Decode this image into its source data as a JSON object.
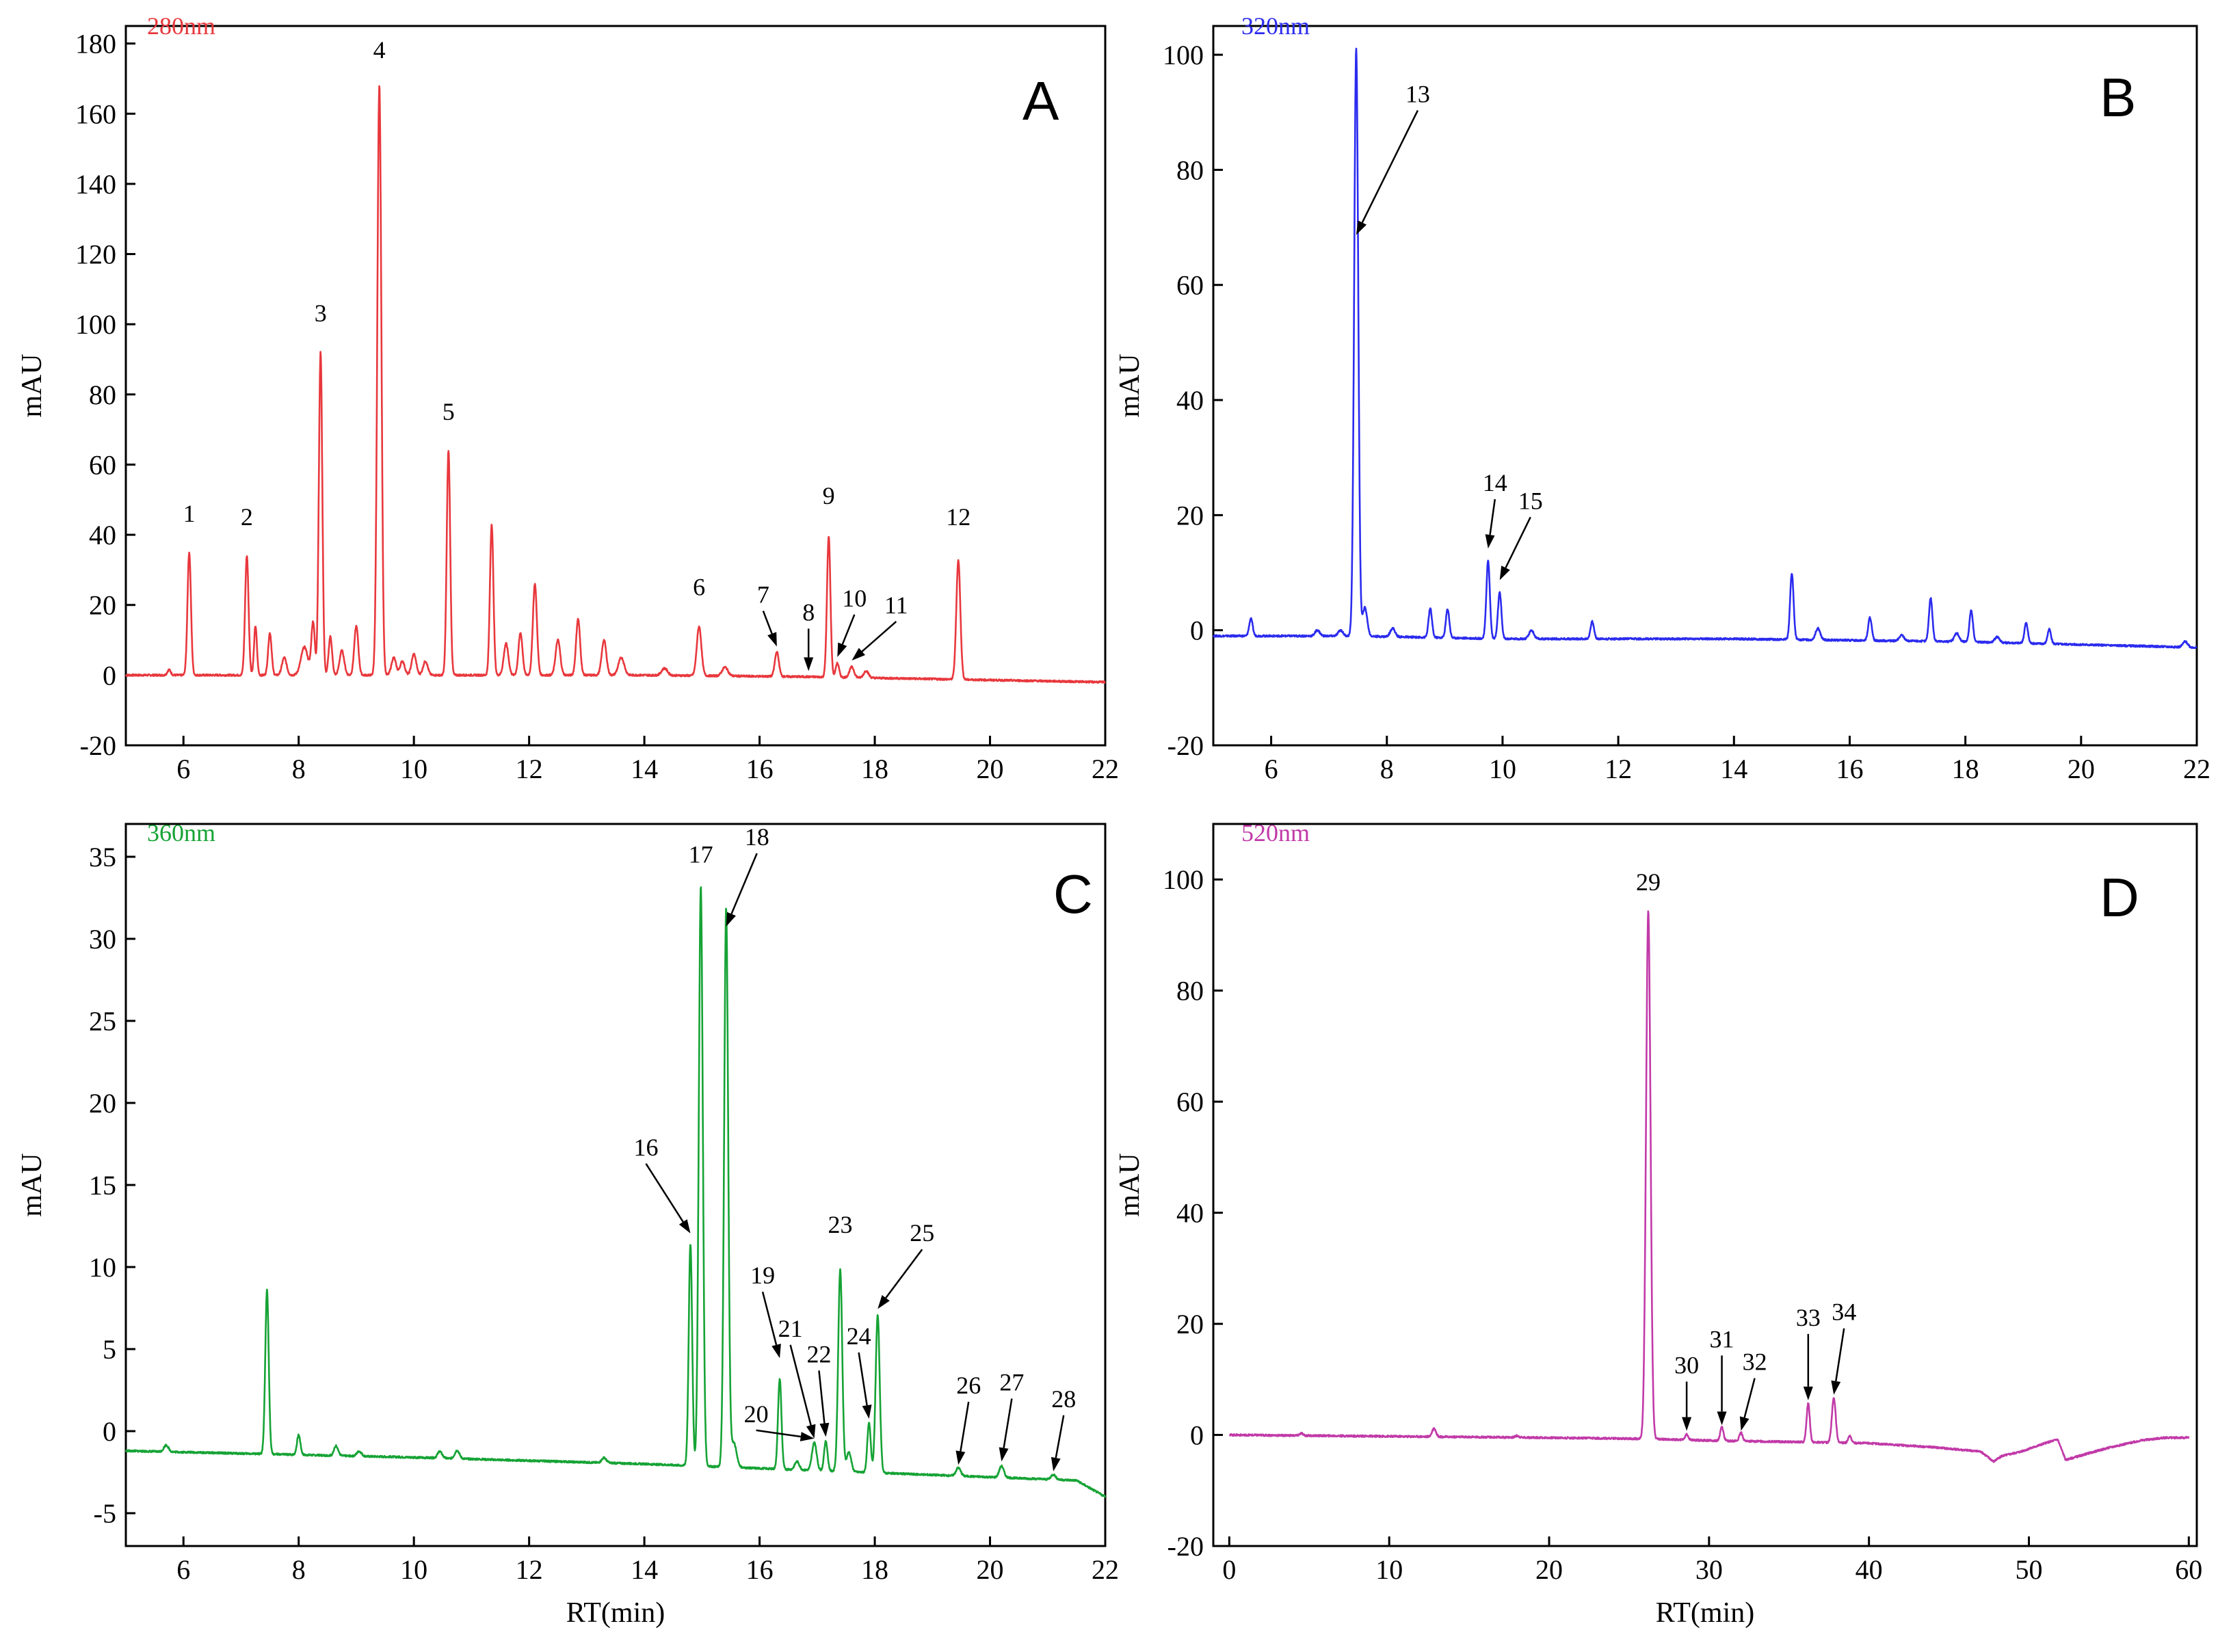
{
  "chart_data": [
    {
      "type": "line",
      "panel": "A",
      "wavelength_label": "280nm",
      "color": "#e8383d",
      "xlabel": "",
      "ylabel": "mAU",
      "xlim": [
        5,
        22
      ],
      "ylim": [
        -20,
        185
      ],
      "xticks": [
        6,
        8,
        10,
        12,
        14,
        16,
        18,
        20,
        22
      ],
      "yticks": [
        -20,
        0,
        20,
        40,
        60,
        80,
        100,
        120,
        140,
        160,
        180
      ],
      "baseline": [
        [
          5,
          0
        ],
        [
          10,
          0
        ],
        [
          14,
          0
        ],
        [
          17,
          -0.5
        ],
        [
          22,
          -2
        ]
      ],
      "peaks": [
        [
          5.75,
          1.5,
          0.03
        ],
        [
          6.1,
          35,
          0.03
        ],
        [
          7.1,
          34,
          0.03
        ],
        [
          7.25,
          14,
          0.025
        ],
        [
          7.5,
          12,
          0.03
        ],
        [
          7.75,
          5,
          0.04
        ],
        [
          8.1,
          8,
          0.06
        ],
        [
          8.25,
          15,
          0.03
        ],
        [
          8.38,
          92,
          0.03
        ],
        [
          8.55,
          11,
          0.03
        ],
        [
          8.75,
          7,
          0.04
        ],
        [
          9.0,
          14,
          0.035
        ],
        [
          9.4,
          168,
          0.035
        ],
        [
          9.65,
          5,
          0.04
        ],
        [
          9.8,
          4,
          0.04
        ],
        [
          10.0,
          6,
          0.04
        ],
        [
          10.2,
          4,
          0.04
        ],
        [
          10.6,
          64,
          0.03
        ],
        [
          11.35,
          43,
          0.03
        ],
        [
          11.6,
          9,
          0.04
        ],
        [
          11.85,
          12,
          0.035
        ],
        [
          12.1,
          26,
          0.035
        ],
        [
          12.5,
          10,
          0.04
        ],
        [
          12.85,
          16,
          0.035
        ],
        [
          13.3,
          10,
          0.04
        ],
        [
          13.6,
          5,
          0.05
        ],
        [
          14.35,
          2,
          0.05
        ],
        [
          14.95,
          14,
          0.04
        ],
        [
          15.4,
          2.5,
          0.05
        ],
        [
          16.3,
          7,
          0.035
        ],
        [
          17.2,
          40,
          0.03
        ],
        [
          17.35,
          4,
          0.03
        ],
        [
          17.6,
          3,
          0.04
        ],
        [
          17.85,
          2,
          0.04
        ],
        [
          19.45,
          34,
          0.035
        ]
      ],
      "peak_labels": [
        {
          "label": "1",
          "rt": 6.1,
          "value": 35
        },
        {
          "label": "2",
          "rt": 7.1,
          "value": 34
        },
        {
          "label": "3",
          "rt": 8.38,
          "value": 92
        },
        {
          "label": "4",
          "rt": 9.4,
          "value": 168
        },
        {
          "label": "5",
          "rt": 10.6,
          "value": 64
        },
        {
          "label": "6",
          "rt": 14.95,
          "value": 14
        },
        {
          "label": "7",
          "rt": 16.3,
          "value": 7,
          "arrow": true
        },
        {
          "label": "8",
          "rt": 16.85,
          "value": 0,
          "arrow": true
        },
        {
          "label": "9",
          "rt": 17.2,
          "value": 40
        },
        {
          "label": "10",
          "rt": 17.35,
          "value": 4,
          "arrow": true
        },
        {
          "label": "11",
          "rt": 17.6,
          "value": 3,
          "arrow": true
        },
        {
          "label": "12",
          "rt": 19.45,
          "value": 34
        }
      ]
    },
    {
      "type": "line",
      "panel": "B",
      "wavelength_label": "320nm",
      "color": "#2b2bef",
      "xlabel": "",
      "ylabel": "mAU",
      "xlim": [
        5,
        22
      ],
      "ylim": [
        -20,
        105
      ],
      "xticks": [
        6,
        8,
        10,
        12,
        14,
        16,
        18,
        20,
        22
      ],
      "yticks": [
        -20,
        0,
        20,
        40,
        60,
        80,
        100
      ],
      "baseline": [
        [
          5,
          -1
        ],
        [
          7.4,
          -1
        ],
        [
          10,
          -1.5
        ],
        [
          14,
          -1.5
        ],
        [
          18,
          -2
        ],
        [
          22,
          -3
        ]
      ],
      "peaks": [
        [
          5.65,
          3,
          0.03
        ],
        [
          6.8,
          1,
          0.04
        ],
        [
          7.2,
          1,
          0.04
        ],
        [
          7.47,
          102,
          0.035
        ],
        [
          7.62,
          5,
          0.04
        ],
        [
          8.1,
          1.5,
          0.04
        ],
        [
          8.75,
          5,
          0.03
        ],
        [
          9.05,
          5,
          0.03
        ],
        [
          9.75,
          13.5,
          0.03
        ],
        [
          9.95,
          8,
          0.03
        ],
        [
          10.5,
          1.5,
          0.04
        ],
        [
          11.55,
          3,
          0.03
        ],
        [
          15.0,
          11.5,
          0.03
        ],
        [
          15.45,
          2,
          0.04
        ],
        [
          16.35,
          4,
          0.03
        ],
        [
          16.9,
          1,
          0.04
        ],
        [
          17.4,
          7.5,
          0.03
        ],
        [
          17.85,
          1.5,
          0.04
        ],
        [
          18.1,
          5.5,
          0.03
        ],
        [
          18.55,
          1,
          0.04
        ],
        [
          19.05,
          3.5,
          0.03
        ],
        [
          19.45,
          2.5,
          0.03
        ],
        [
          21.8,
          1,
          0.04
        ]
      ],
      "peak_labels": [
        {
          "label": "13",
          "rt": 7.47,
          "value": 68,
          "arrow": true
        },
        {
          "label": "14",
          "rt": 9.75,
          "value": 13.5,
          "arrow": true
        },
        {
          "label": "15",
          "rt": 9.95,
          "value": 8,
          "arrow": true
        }
      ]
    },
    {
      "type": "line",
      "panel": "C",
      "wavelength_label": "360nm",
      "color": "#16a335",
      "xlabel": "RT(min)",
      "ylabel": "mAU",
      "xlim": [
        5,
        22
      ],
      "ylim": [
        -7,
        37
      ],
      "xticks": [
        6,
        8,
        10,
        12,
        14,
        16,
        18,
        20,
        22
      ],
      "yticks": [
        -5,
        0,
        5,
        10,
        15,
        20,
        25,
        30,
        35
      ],
      "baseline": [
        [
          5,
          -1.2
        ],
        [
          10,
          -1.6
        ],
        [
          14,
          -2.0
        ],
        [
          17,
          -2.4
        ],
        [
          20,
          -2.8
        ],
        [
          21.5,
          -3.0
        ],
        [
          22,
          -4.0
        ]
      ],
      "peaks": [
        [
          5.7,
          0.4,
          0.04
        ],
        [
          7.45,
          10,
          0.03
        ],
        [
          8.0,
          1.2,
          0.03
        ],
        [
          8.65,
          0.6,
          0.035
        ],
        [
          9.05,
          0.3,
          0.04
        ],
        [
          10.45,
          0.4,
          0.04
        ],
        [
          10.75,
          0.5,
          0.04
        ],
        [
          13.3,
          0.3,
          0.04
        ],
        [
          14.8,
          13.5,
          0.03
        ],
        [
          14.98,
          35.3,
          0.035
        ],
        [
          15.42,
          34,
          0.035
        ],
        [
          15.55,
          1.5,
          0.05
        ],
        [
          16.35,
          5.5,
          0.03
        ],
        [
          16.65,
          0.5,
          0.04
        ],
        [
          16.95,
          1.7,
          0.04
        ],
        [
          17.15,
          1.8,
          0.03
        ],
        [
          17.4,
          12.3,
          0.035
        ],
        [
          17.55,
          1.2,
          0.04
        ],
        [
          17.9,
          3,
          0.03
        ],
        [
          18.05,
          9.6,
          0.035
        ],
        [
          19.45,
          0.5,
          0.04
        ],
        [
          20.2,
          0.7,
          0.04
        ],
        [
          21.1,
          0.3,
          0.04
        ]
      ],
      "peak_labels": [
        {
          "label": "16",
          "rt": 14.8,
          "value": 11.8,
          "arrow": true
        },
        {
          "label": "17",
          "rt": 14.98,
          "value": 33.4
        },
        {
          "label": "18",
          "rt": 15.42,
          "value": 30.5,
          "arrow": true
        },
        {
          "label": "19",
          "rt": 16.35,
          "value": 4.2,
          "arrow": true
        },
        {
          "label": "20",
          "rt": 16.95,
          "value": -0.7,
          "arrow": true
        },
        {
          "label": "21",
          "rt": 16.95,
          "value": -0.7,
          "arrow": true
        },
        {
          "label": "22",
          "rt": 17.15,
          "value": -0.6,
          "arrow": true
        },
        {
          "label": "23",
          "rt": 17.4,
          "value": 10.2
        },
        {
          "label": "24",
          "rt": 17.9,
          "value": 0.5,
          "arrow": true
        },
        {
          "label": "25",
          "rt": 18.05,
          "value": 7.2,
          "arrow": true
        },
        {
          "label": "26",
          "rt": 19.45,
          "value": -2.3,
          "arrow": true
        },
        {
          "label": "27",
          "rt": 20.2,
          "value": -2.1,
          "arrow": true
        },
        {
          "label": "28",
          "rt": 21.1,
          "value": -2.7,
          "arrow": true
        }
      ]
    },
    {
      "type": "line",
      "panel": "D",
      "wavelength_label": "520nm",
      "color": "#c13aa8",
      "xlabel": "RT(min)",
      "ylabel": "mAU",
      "xlim": [
        -1,
        60.5
      ],
      "ylim": [
        -20,
        110
      ],
      "xticks": [
        0,
        10,
        20,
        30,
        40,
        50,
        60
      ],
      "yticks": [
        -20,
        0,
        20,
        40,
        60,
        80,
        100
      ],
      "baseline": [
        [
          0,
          0
        ],
        [
          20,
          -0.5
        ],
        [
          26,
          -0.7
        ],
        [
          30,
          -1
        ],
        [
          40,
          -1.5
        ],
        [
          44,
          -2.2
        ],
        [
          47,
          -3
        ],
        [
          47.8,
          -4.8
        ],
        [
          48.3,
          -3.8
        ],
        [
          49.5,
          -3.0
        ],
        [
          51,
          -1.5
        ],
        [
          51.8,
          -0.8
        ],
        [
          52.3,
          -4.5
        ],
        [
          53.5,
          -3.5
        ],
        [
          55,
          -2.3
        ],
        [
          57,
          -1
        ],
        [
          58.5,
          -0.5
        ],
        [
          60,
          -0.5
        ]
      ],
      "peaks": [
        [
          4.5,
          0.4,
          0.1
        ],
        [
          12.8,
          1.5,
          0.12
        ],
        [
          18.0,
          0.3,
          0.12
        ],
        [
          26.2,
          95,
          0.14
        ],
        [
          28.6,
          1,
          0.1
        ],
        [
          30.8,
          2.5,
          0.1
        ],
        [
          32.0,
          1.5,
          0.1
        ],
        [
          36.2,
          7,
          0.1
        ],
        [
          37.8,
          8,
          0.12
        ],
        [
          38.8,
          1.2,
          0.1
        ]
      ],
      "peak_labels": [
        {
          "label": "29",
          "rt": 26.2,
          "value": 95
        },
        {
          "label": "30",
          "rt": 28.6,
          "value": 0,
          "arrow": true
        },
        {
          "label": "31",
          "rt": 30.8,
          "value": 1,
          "arrow": true
        },
        {
          "label": "32",
          "rt": 32.0,
          "value": 0,
          "arrow": true
        },
        {
          "label": "33",
          "rt": 36.2,
          "value": 5.5,
          "arrow": true
        },
        {
          "label": "34",
          "rt": 37.8,
          "value": 6.5,
          "arrow": true
        }
      ]
    }
  ]
}
